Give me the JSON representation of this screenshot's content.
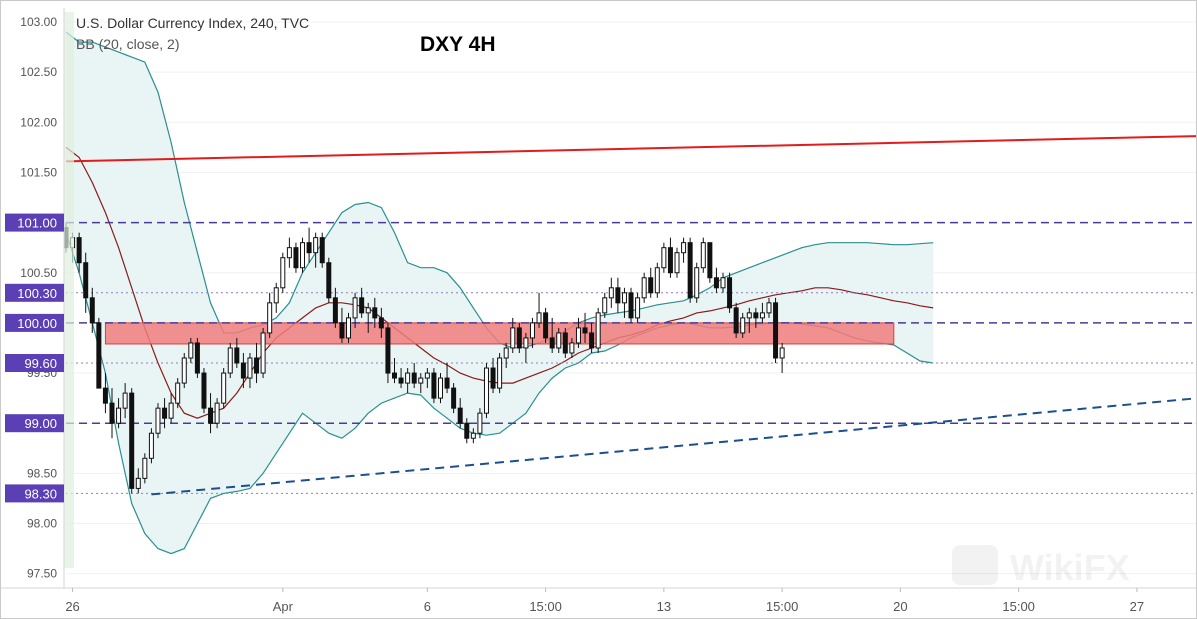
{
  "header": {
    "symbol_line": "U.S. Dollar Currency Index, 240, TVC",
    "indicator_line": "BB (20, close, 2)",
    "overlay_title": "DXY 4H"
  },
  "watermark": "WikiFX",
  "colors": {
    "background": "#ffffff",
    "candle_up": "#ffffff",
    "candle_down": "#111111",
    "candle_outline": "#111111",
    "bb_bands": "#2a8f8f",
    "bb_fill": "#e9f5f5",
    "bb_basis": "#8b1a1a",
    "resistance_line": "#e21b1b",
    "support_trendline": "#1c4f8f",
    "level_line": "#4a3a9a",
    "price_label_bg": "#5a3fb5",
    "zone_fill": "#f07c7c",
    "zone_border": "#d94040",
    "axis_text": "#555555"
  },
  "chart_data": {
    "type": "candlestick",
    "ylim": [
      97.4,
      103.1
    ],
    "y_ticks": [
      97.5,
      98.0,
      98.5,
      99.0,
      99.5,
      100.5,
      101.5,
      102.0,
      102.5,
      103.0
    ],
    "y_tick_labels": [
      "97.50",
      "98.00",
      "98.50",
      "99.00",
      "99.50",
      "100.50",
      "101.50",
      "102.00",
      "102.50",
      "103.00"
    ],
    "x_tick_labels": [
      {
        "label": "26",
        "bar": 1
      },
      {
        "label": "Apr",
        "bar": 33
      },
      {
        "label": "6",
        "bar": 55
      },
      {
        "label": "15:00",
        "bar": 73
      },
      {
        "label": "13",
        "bar": 91
      },
      {
        "label": "15:00",
        "bar": 109
      },
      {
        "label": "20",
        "bar": 127
      },
      {
        "label": "15:00",
        "bar": 145
      },
      {
        "label": "27",
        "bar": 163
      }
    ],
    "highlighted_levels": [
      {
        "price": 101.0,
        "label": "101.00",
        "style": "dashed"
      },
      {
        "price": 100.3,
        "label": "100.30",
        "style": "dotted"
      },
      {
        "price": 100.0,
        "label": "100.00",
        "style": "dashed"
      },
      {
        "price": 99.6,
        "label": "99.60",
        "style": "dotted"
      },
      {
        "price": 99.0,
        "label": "99.00",
        "style": "dashed"
      },
      {
        "price": 98.3,
        "label": "98.30",
        "style": "dotted"
      }
    ],
    "resistance_line": {
      "from": {
        "bar": 0,
        "price": 101.61
      },
      "to": {
        "bar": 184,
        "price": 101.88
      }
    },
    "support_trendline": {
      "from": {
        "bar": 13,
        "price": 98.29
      },
      "to": {
        "bar": 184,
        "price": 99.32
      }
    },
    "zone": {
      "from_bar": 6,
      "to_bar": 126,
      "low": 99.79,
      "high": 100.0
    },
    "candles": [
      [
        100.95,
        101.0,
        100.7,
        100.75
      ],
      [
        100.75,
        100.9,
        100.6,
        100.85
      ],
      [
        100.85,
        100.9,
        100.5,
        100.6
      ],
      [
        100.6,
        100.7,
        100.1,
        100.25
      ],
      [
        100.25,
        100.35,
        99.9,
        100.0
      ],
      [
        100.0,
        100.05,
        99.35,
        99.35
      ],
      [
        99.35,
        99.5,
        99.1,
        99.2
      ],
      [
        99.2,
        99.35,
        98.85,
        99.0
      ],
      [
        99.0,
        99.25,
        98.95,
        99.15
      ],
      [
        99.15,
        99.4,
        99.05,
        99.3
      ],
      [
        99.3,
        99.35,
        98.3,
        98.35
      ],
      [
        98.35,
        98.55,
        98.3,
        98.45
      ],
      [
        98.45,
        98.7,
        98.4,
        98.65
      ],
      [
        98.65,
        98.95,
        98.6,
        98.9
      ],
      [
        98.9,
        99.2,
        98.85,
        99.15
      ],
      [
        99.15,
        99.25,
        98.95,
        99.05
      ],
      [
        99.05,
        99.3,
        99.0,
        99.2
      ],
      [
        99.2,
        99.45,
        99.15,
        99.4
      ],
      [
        99.4,
        99.7,
        99.35,
        99.65
      ],
      [
        99.65,
        99.85,
        99.6,
        99.8
      ],
      [
        99.8,
        99.85,
        99.45,
        99.5
      ],
      [
        99.5,
        99.55,
        99.1,
        99.15
      ],
      [
        99.15,
        99.3,
        98.9,
        99.0
      ],
      [
        99.0,
        99.25,
        98.95,
        99.2
      ],
      [
        99.2,
        99.55,
        99.15,
        99.5
      ],
      [
        99.5,
        99.8,
        99.45,
        99.75
      ],
      [
        99.75,
        99.85,
        99.55,
        99.6
      ],
      [
        99.6,
        99.7,
        99.35,
        99.45
      ],
      [
        99.45,
        99.7,
        99.35,
        99.65
      ],
      [
        99.65,
        99.8,
        99.4,
        99.5
      ],
      [
        99.5,
        99.95,
        99.45,
        99.9
      ],
      [
        99.9,
        100.3,
        99.85,
        100.2
      ],
      [
        100.2,
        100.4,
        100.1,
        100.35
      ],
      [
        100.35,
        100.7,
        100.3,
        100.65
      ],
      [
        100.65,
        100.85,
        100.55,
        100.75
      ],
      [
        100.75,
        100.8,
        100.5,
        100.55
      ],
      [
        100.55,
        100.85,
        100.5,
        100.8
      ],
      [
        100.8,
        100.95,
        100.6,
        100.7
      ],
      [
        100.7,
        100.9,
        100.55,
        100.85
      ],
      [
        100.85,
        100.9,
        100.55,
        100.6
      ],
      [
        100.6,
        100.65,
        100.2,
        100.25
      ],
      [
        100.25,
        100.35,
        99.95,
        100.0
      ],
      [
        100.0,
        100.15,
        99.8,
        99.85
      ],
      [
        99.85,
        100.1,
        99.8,
        100.05
      ],
      [
        100.05,
        100.3,
        99.95,
        100.25
      ],
      [
        100.25,
        100.35,
        100.05,
        100.1
      ],
      [
        100.1,
        100.2,
        99.9,
        100.15
      ],
      [
        100.15,
        100.25,
        99.95,
        100.05
      ],
      [
        100.05,
        100.15,
        99.85,
        99.95
      ],
      [
        99.95,
        100.0,
        99.4,
        99.5
      ],
      [
        99.5,
        99.65,
        99.4,
        99.45
      ],
      [
        99.45,
        99.55,
        99.35,
        99.4
      ],
      [
        99.4,
        99.55,
        99.3,
        99.5
      ],
      [
        99.5,
        99.6,
        99.35,
        99.4
      ],
      [
        99.4,
        99.5,
        99.3,
        99.45
      ],
      [
        99.45,
        99.55,
        99.35,
        99.5
      ],
      [
        99.5,
        99.55,
        99.2,
        99.25
      ],
      [
        99.25,
        99.5,
        99.2,
        99.45
      ],
      [
        99.45,
        99.6,
        99.3,
        99.35
      ],
      [
        99.35,
        99.4,
        99.1,
        99.15
      ],
      [
        99.15,
        99.25,
        98.95,
        99.0
      ],
      [
        99.0,
        99.05,
        98.8,
        98.85
      ],
      [
        98.85,
        98.95,
        98.8,
        98.9
      ],
      [
        98.9,
        99.15,
        98.85,
        99.1
      ],
      [
        99.1,
        99.6,
        99.05,
        99.55
      ],
      [
        99.55,
        99.65,
        99.3,
        99.35
      ],
      [
        99.35,
        99.7,
        99.3,
        99.65
      ],
      [
        99.65,
        99.8,
        99.55,
        99.75
      ],
      [
        99.75,
        100.05,
        99.7,
        99.95
      ],
      [
        99.95,
        100.0,
        99.7,
        99.75
      ],
      [
        99.75,
        99.9,
        99.6,
        99.85
      ],
      [
        99.85,
        100.05,
        99.75,
        100.0
      ],
      [
        100.0,
        100.3,
        99.95,
        100.1
      ],
      [
        100.1,
        100.15,
        99.8,
        99.85
      ],
      [
        99.85,
        100.05,
        99.7,
        99.75
      ],
      [
        99.75,
        99.95,
        99.7,
        99.9
      ],
      [
        99.9,
        99.95,
        99.65,
        99.7
      ],
      [
        99.7,
        99.85,
        99.65,
        99.8
      ],
      [
        99.8,
        100.05,
        99.75,
        99.95
      ],
      [
        99.95,
        100.1,
        99.8,
        99.9
      ],
      [
        99.9,
        100.0,
        99.7,
        99.75
      ],
      [
        99.75,
        100.15,
        99.7,
        100.1
      ],
      [
        100.1,
        100.3,
        100.05,
        100.25
      ],
      [
        100.25,
        100.45,
        100.15,
        100.35
      ],
      [
        100.35,
        100.45,
        100.1,
        100.2
      ],
      [
        100.2,
        100.35,
        100.05,
        100.3
      ],
      [
        100.3,
        100.35,
        100.0,
        100.05
      ],
      [
        100.05,
        100.3,
        100.0,
        100.25
      ],
      [
        100.25,
        100.5,
        100.2,
        100.45
      ],
      [
        100.45,
        100.55,
        100.25,
        100.3
      ],
      [
        100.3,
        100.6,
        100.25,
        100.55
      ],
      [
        100.55,
        100.8,
        100.5,
        100.75
      ],
      [
        100.75,
        100.85,
        100.45,
        100.5
      ],
      [
        100.5,
        100.75,
        100.45,
        100.7
      ],
      [
        100.7,
        100.85,
        100.6,
        100.8
      ],
      [
        100.8,
        100.85,
        100.2,
        100.25
      ],
      [
        100.25,
        100.6,
        100.2,
        100.55
      ],
      [
        100.55,
        100.85,
        100.5,
        100.8
      ],
      [
        100.8,
        100.8,
        100.4,
        100.45
      ],
      [
        100.45,
        100.55,
        100.3,
        100.35
      ],
      [
        100.35,
        100.5,
        100.3,
        100.45
      ],
      [
        100.45,
        100.5,
        100.1,
        100.15
      ],
      [
        100.15,
        100.2,
        99.85,
        99.9
      ],
      [
        99.9,
        100.1,
        99.85,
        100.05
      ],
      [
        100.05,
        100.15,
        99.9,
        100.1
      ],
      [
        100.1,
        100.15,
        99.95,
        100.05
      ],
      [
        100.05,
        100.2,
        100.0,
        100.1
      ],
      [
        100.1,
        100.25,
        100.05,
        100.2
      ],
      [
        100.2,
        100.25,
        99.6,
        99.65
      ],
      [
        99.65,
        99.8,
        99.5,
        99.75
      ]
    ],
    "bb_upper": [
      102.9,
      102.8,
      102.8,
      102.75,
      102.7,
      102.65,
      102.6,
      102.3,
      101.8,
      101.2,
      100.7,
      100.2,
      99.9,
      99.9,
      99.95,
      99.98,
      100.05,
      100.2,
      100.5,
      100.7,
      100.9,
      101.1,
      101.18,
      101.2,
      101.15,
      100.9,
      100.6,
      100.55,
      100.55,
      100.5,
      100.35,
      100.15,
      99.95,
      99.8,
      99.75,
      99.76,
      99.8,
      99.85,
      99.92,
      100.0,
      100.05,
      100.08,
      100.1,
      100.12,
      100.15,
      100.18,
      100.2,
      100.22,
      100.28,
      100.35,
      100.45,
      100.5,
      100.55,
      100.6,
      100.65,
      100.7,
      100.75,
      100.78,
      100.8,
      100.8,
      100.8,
      100.8,
      100.79,
      100.78,
      100.78,
      100.79,
      100.8
    ],
    "bb_lower": [
      100.9,
      100.5,
      100.0,
      99.5,
      98.8,
      98.2,
      97.9,
      97.75,
      97.7,
      97.75,
      98.0,
      98.25,
      98.3,
      98.32,
      98.35,
      98.5,
      98.7,
      98.9,
      99.1,
      99.0,
      98.9,
      98.85,
      98.95,
      99.1,
      99.2,
      99.25,
      99.3,
      99.28,
      99.15,
      99.05,
      98.95,
      98.9,
      98.88,
      98.9,
      99.0,
      99.1,
      99.3,
      99.45,
      99.55,
      99.6,
      99.7,
      99.72,
      99.78,
      99.85,
      99.9,
      99.95,
      99.98,
      100.0,
      99.98,
      99.95,
      99.95,
      99.96,
      99.98,
      99.99,
      100.0,
      100.0,
      99.99,
      99.97,
      99.95,
      99.9,
      99.85,
      99.82,
      99.8,
      99.78,
      99.7,
      99.62,
      99.6
    ],
    "bb_basis": [
      101.75,
      101.65,
      101.4,
      101.1,
      100.75,
      100.35,
      99.95,
      99.6,
      99.3,
      99.1,
      99.05,
      99.1,
      99.15,
      99.3,
      99.5,
      99.7,
      99.85,
      99.95,
      100.05,
      100.15,
      100.2,
      100.2,
      100.18,
      100.15,
      100.05,
      99.95,
      99.85,
      99.75,
      99.65,
      99.58,
      99.5,
      99.45,
      99.42,
      99.4,
      99.4,
      99.45,
      99.5,
      99.55,
      99.62,
      99.7,
      99.75,
      99.8,
      99.85,
      99.88,
      99.92,
      99.98,
      100.02,
      100.05,
      100.1,
      100.12,
      100.15,
      100.18,
      100.22,
      100.25,
      100.28,
      100.3,
      100.32,
      100.35,
      100.35,
      100.33,
      100.3,
      100.28,
      100.25,
      100.22,
      100.2,
      100.17,
      100.15
    ]
  }
}
